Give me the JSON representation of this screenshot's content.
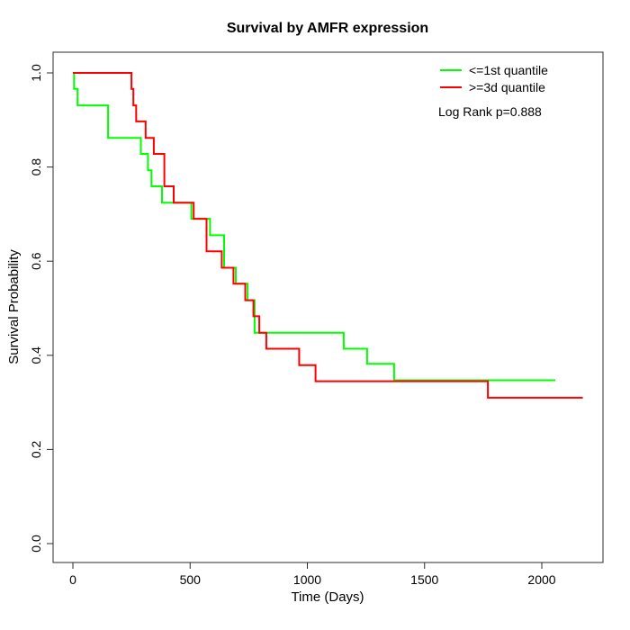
{
  "chart_data": {
    "type": "line",
    "subtype": "kaplan-meier-step-survival",
    "title": "Survival by AMFR expression",
    "xlabel": "Time (Days)",
    "ylabel": "Survival Probability",
    "xlim": [
      0,
      2200
    ],
    "ylim": [
      0.0,
      1.0
    ],
    "x_ticks": [
      0,
      500,
      1000,
      1500,
      2000
    ],
    "y_ticks": [
      "0.0",
      "0.2",
      "0.4",
      "0.6",
      "0.8",
      "1.0"
    ],
    "grid": false,
    "legend_position": "top-right",
    "annotation": "Log Rank p=0.888",
    "series": [
      {
        "name": "<=1st quantile",
        "color": "#00ff00",
        "steps": [
          [
            0,
            1.0
          ],
          [
            5,
            0.966
          ],
          [
            20,
            0.931
          ],
          [
            150,
            0.862
          ],
          [
            290,
            0.828
          ],
          [
            320,
            0.793
          ],
          [
            335,
            0.759
          ],
          [
            380,
            0.724
          ],
          [
            505,
            0.69
          ],
          [
            585,
            0.655
          ],
          [
            645,
            0.586
          ],
          [
            695,
            0.552
          ],
          [
            745,
            0.517
          ],
          [
            775,
            0.448
          ],
          [
            1155,
            0.414
          ],
          [
            1255,
            0.382
          ],
          [
            1370,
            0.347
          ]
        ],
        "end_time": 2058
      },
      {
        "name": ">=3d quantile",
        "color": "#ff0000",
        "steps": [
          [
            0,
            1.0
          ],
          [
            250,
            0.966
          ],
          [
            258,
            0.931
          ],
          [
            270,
            0.897
          ],
          [
            310,
            0.862
          ],
          [
            345,
            0.828
          ],
          [
            390,
            0.759
          ],
          [
            430,
            0.724
          ],
          [
            515,
            0.69
          ],
          [
            570,
            0.621
          ],
          [
            635,
            0.586
          ],
          [
            685,
            0.552
          ],
          [
            735,
            0.517
          ],
          [
            770,
            0.483
          ],
          [
            795,
            0.448
          ],
          [
            825,
            0.414
          ],
          [
            965,
            0.379
          ],
          [
            1035,
            0.345
          ],
          [
            1770,
            0.31
          ]
        ],
        "end_time": 2175
      }
    ]
  }
}
